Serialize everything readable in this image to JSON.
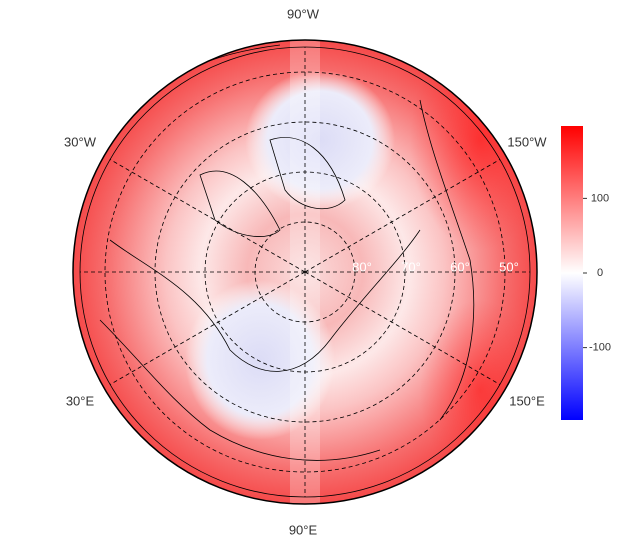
{
  "map": {
    "meridian_labels": [
      "90°W",
      "30°W",
      "150°W",
      "30°E",
      "150°E",
      "90°E"
    ],
    "latitude_labels": [
      "80°",
      "70°",
      "60°",
      "50°"
    ]
  },
  "colorbar": {
    "lim": [
      -197,
      197
    ],
    "ticks": [
      -100,
      0,
      100
    ]
  }
}
